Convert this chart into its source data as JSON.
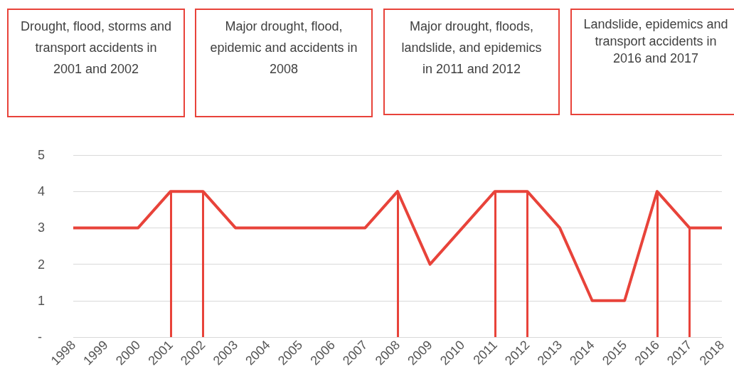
{
  "chart_data": {
    "type": "line",
    "annotations": [
      "Drought, flood, storms and transport accidents in 2001 and 2002",
      "Major drought, flood, epidemic and accidents in 2008",
      "Major drought, floods, landslide, and epidemics in 2011 and 2012",
      "Landslide, epidemics and transport accidents in 2016 and 2017"
    ],
    "categories": [
      "1998",
      "1999",
      "2000",
      "2001",
      "2002",
      "2003",
      "2004",
      "2005",
      "2006",
      "2007",
      "2008",
      "2009",
      "2010",
      "2011",
      "2012",
      "2013",
      "2014",
      "2015",
      "2016",
      "2017",
      "2018"
    ],
    "series": [
      {
        "color": "#e8433a",
        "values": [
          3,
          3,
          3,
          4,
          4,
          3,
          3,
          3,
          3,
          3,
          4,
          2,
          3,
          4,
          4,
          3,
          1,
          1,
          4,
          3,
          3
        ]
      }
    ],
    "ylim": [
      0,
      5
    ],
    "yticks": [
      {
        "value": 0,
        "label": "-"
      },
      1,
      2,
      3,
      4,
      5
    ],
    "grid": "y",
    "marker": "none",
    "line_style": "solid",
    "ref_lines": [
      {
        "axis": "x",
        "value": "2001",
        "color": "#e8433a"
      },
      {
        "axis": "x",
        "value": "2002",
        "color": "#e8433a"
      },
      {
        "axis": "x",
        "value": "2008",
        "color": "#e8433a"
      },
      {
        "axis": "x",
        "value": "2011",
        "color": "#e8433a"
      },
      {
        "axis": "x",
        "value": "2012",
        "color": "#e8433a"
      },
      {
        "axis": "x",
        "value": "2016",
        "color": "#e8433a"
      },
      {
        "axis": "x",
        "value": "2017",
        "color": "#e8433a"
      }
    ]
  }
}
